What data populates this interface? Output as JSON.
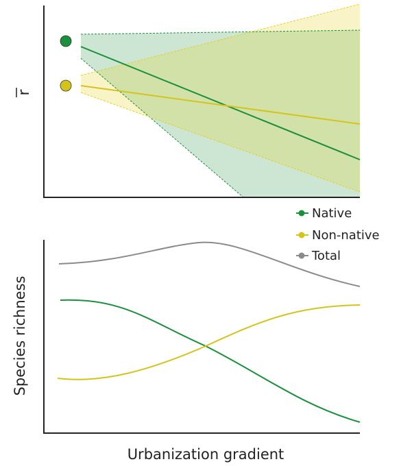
{
  "top_panel": {
    "y_label": "r"
  },
  "legend": {
    "items": [
      "Native",
      "Non-native",
      "Total"
    ]
  },
  "bottom_panel": {
    "y_label": "Species richness",
    "x_label": "Urbanization gradient"
  }
}
